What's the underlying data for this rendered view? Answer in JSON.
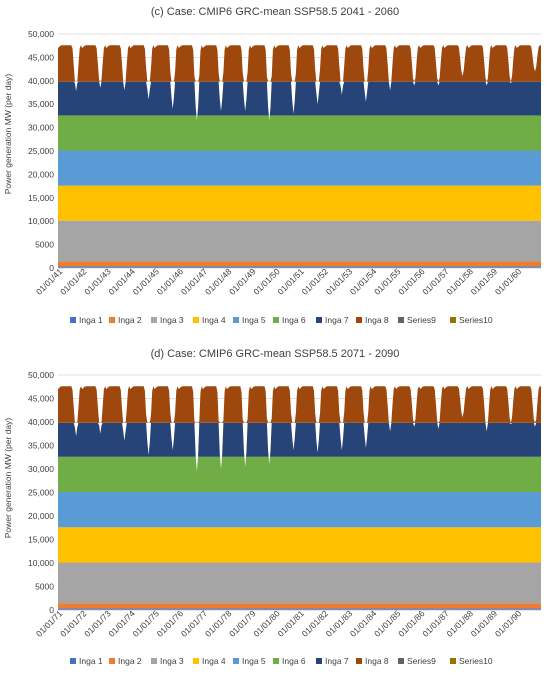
{
  "colors": {
    "Inga 1": "#4472c4",
    "Inga 2": "#ed7d31",
    "Inga 3": "#a5a5a5",
    "Inga 4": "#ffc000",
    "Inga 5": "#5b9bd5",
    "Inga 6": "#70ad47",
    "Inga 7": "#264478",
    "Inga 8": "#9e480e",
    "Series9": "#636363",
    "Series10": "#997300"
  },
  "chart_data": [
    {
      "type": "area",
      "stacked": true,
      "title": "(c)  Case: CMIP6 GRC-mean  SSP58.5  2041 - 2060",
      "ylabel": "Power generation MW (per day)",
      "xlabel": "",
      "ylim": [
        0,
        50000
      ],
      "yticks": [
        "0",
        "5000",
        "10,000",
        "15,000",
        "20,000",
        "25,000",
        "30,000",
        "35,000",
        "40,000",
        "45,000",
        "50,000"
      ],
      "xticks": [
        "01/01/41",
        "01/01/42",
        "01/01/43",
        "01/01/44",
        "01/01/45",
        "01/01/46",
        "01/01/47",
        "01/01/48",
        "01/01/49",
        "01/01/50",
        "01/01/51",
        "01/01/52",
        "01/01/53",
        "01/01/54",
        "01/01/55",
        "01/01/56",
        "01/01/57",
        "01/01/58",
        "01/01/59",
        "01/01/60"
      ],
      "grid": true,
      "legend_position": "bottom",
      "legend": [
        "Inga 1",
        "Inga 2",
        "Inga 3",
        "Inga 4",
        "Inga 5",
        "Inga 6",
        "Inga 7",
        "Inga 8",
        "Series9",
        "Series10"
      ],
      "series": [
        {
          "name": "Inga 1",
          "values": [
            350
          ]
        },
        {
          "name": "Inga 2",
          "values": [
            1050
          ]
        },
        {
          "name": "Inga 3",
          "values": [
            8700
          ]
        },
        {
          "name": "Inga 4",
          "values": [
            7500
          ]
        },
        {
          "name": "Inga 5",
          "values": [
            7500
          ]
        },
        {
          "name": "Inga 6",
          "values": [
            7500
          ]
        },
        {
          "name": "Inga 7",
          "values": [
            7200
          ]
        },
        {
          "name": "Inga 8",
          "values": [
            7800
          ]
        },
        {
          "name": "Series9",
          "values": [
            0
          ]
        },
        {
          "name": "Series10",
          "values": [
            0
          ]
        }
      ],
      "annual_minimum_total": [
        37800,
        38500,
        38000,
        36000,
        34000,
        31500,
        33500,
        33500,
        31500,
        33000,
        35000,
        37000,
        35500,
        38000,
        39000,
        39000,
        41000,
        39000,
        39500,
        42000
      ]
    },
    {
      "type": "area",
      "stacked": true,
      "title": "(d)  Case: CMIP6 GRC-mean  SSP58.5  2071 - 2090",
      "ylabel": "Power generation MW (per day)",
      "xlabel": "",
      "ylim": [
        0,
        50000
      ],
      "yticks": [
        "0",
        "5000",
        "10,000",
        "15,000",
        "20,000",
        "25,000",
        "30,000",
        "35,000",
        "40,000",
        "45,000",
        "50,000"
      ],
      "xticks": [
        "01/01/71",
        "01/01/72",
        "01/01/73",
        "01/01/74",
        "01/01/75",
        "01/01/76",
        "01/01/77",
        "01/01/78",
        "01/01/79",
        "01/01/80",
        "01/01/81",
        "01/01/82",
        "01/01/83",
        "01/01/84",
        "01/01/85",
        "01/01/86",
        "01/01/87",
        "01/01/88",
        "01/01/89",
        "01/01/90"
      ],
      "grid": true,
      "legend_position": "bottom",
      "legend": [
        "Inga 1",
        "Inga 2",
        "Inga 3",
        "Inga 4",
        "Inga 5",
        "Inga 6",
        "Inga 7",
        "Inga 8",
        "Series9",
        "Series10"
      ],
      "series": [
        {
          "name": "Inga 1",
          "values": [
            350
          ]
        },
        {
          "name": "Inga 2",
          "values": [
            1050
          ]
        },
        {
          "name": "Inga 3",
          "values": [
            8700
          ]
        },
        {
          "name": "Inga 4",
          "values": [
            7500
          ]
        },
        {
          "name": "Inga 5",
          "values": [
            7500
          ]
        },
        {
          "name": "Inga 6",
          "values": [
            7500
          ]
        },
        {
          "name": "Inga 7",
          "values": [
            7200
          ]
        },
        {
          "name": "Inga 8",
          "values": [
            7800
          ]
        },
        {
          "name": "Series9",
          "values": [
            0
          ]
        },
        {
          "name": "Series10",
          "values": [
            0
          ]
        }
      ],
      "annual_minimum_total": [
        37000,
        37500,
        36000,
        33000,
        34000,
        29500,
        30000,
        30500,
        31000,
        34000,
        33500,
        34000,
        34500,
        38000,
        39000,
        38500,
        41000,
        38000,
        39500,
        39000
      ]
    }
  ]
}
